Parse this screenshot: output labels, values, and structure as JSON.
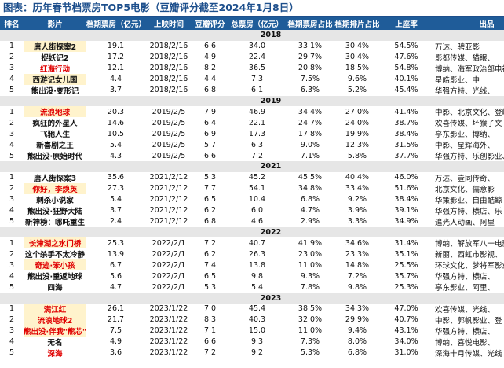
{
  "header": {
    "title": "图表：历年春节档票房TOP5电影（豆瓣评分截至2024年1月8日）"
  },
  "table": {
    "columns": [
      "排名",
      "影片",
      "档期票房（亿元）",
      "上映时间",
      "豆瓣评分",
      "总票房（亿元）",
      "档期票房占比",
      "档期排片占比",
      "上座率",
      "出品"
    ],
    "groups": [
      {
        "year": "2018",
        "rows": [
          [
            "1",
            "唐人街探案2",
            "19.1",
            "2018/2/16",
            "6.6",
            "34.0",
            "33.1%",
            "30.4%",
            "54.5%",
            "万达、骋亚影"
          ],
          [
            "2",
            "捉妖记2",
            "17.2",
            "2018/2/16",
            "4.9",
            "22.4",
            "29.7%",
            "30.4%",
            "47.6%",
            "影都传媒、猫眼、"
          ],
          [
            "3",
            "红海行动",
            "12.1",
            "2018/2/16",
            "8.2",
            "36.5",
            "20.8%",
            "18.5%",
            "54.8%",
            "博纳、海军政治部电视"
          ],
          [
            "4",
            "西游记女儿国",
            "4.4",
            "2018/2/16",
            "4.4",
            "7.3",
            "7.5%",
            "9.6%",
            "40.1%",
            "星皓影业、中"
          ],
          [
            "5",
            "熊出没·变形记",
            "3.7",
            "2018/2/16",
            "6.8",
            "6.1",
            "6.3%",
            "5.2%",
            "45.4%",
            "华强方特、光线、"
          ]
        ]
      },
      {
        "year": "2019",
        "rows": [
          [
            "1",
            "流浪地球",
            "20.3",
            "2019/2/5",
            "7.9",
            "46.9",
            "34.4%",
            "27.0%",
            "41.4%",
            "中影、北京文化、登峰"
          ],
          [
            "2",
            "疯狂的外星人",
            "14.6",
            "2019/2/5",
            "6.4",
            "22.1",
            "24.7%",
            "24.0%",
            "38.7%",
            "欢喜传媒、坏猴子文"
          ],
          [
            "3",
            "飞驰人生",
            "10.5",
            "2019/2/5",
            "6.9",
            "17.3",
            "17.8%",
            "19.9%",
            "38.4%",
            "亭东影业、博纳、"
          ],
          [
            "4",
            "新喜剧之王",
            "5.4",
            "2019/2/5",
            "5.7",
            "6.3",
            "9.0%",
            "12.3%",
            "31.5%",
            "中影、星辉海外、"
          ],
          [
            "5",
            "熊出没·原始时代",
            "4.3",
            "2019/2/5",
            "6.6",
            "7.2",
            "7.1%",
            "5.8%",
            "37.7%",
            "华强方特、乐创影业、"
          ]
        ]
      },
      {
        "year": "2021",
        "rows": [
          [
            "1",
            "唐人街探案3",
            "35.6",
            "2021/2/12",
            "5.3",
            "45.2",
            "45.5%",
            "40.4%",
            "46.0%",
            "万达、壹同传奇、"
          ],
          [
            "2",
            "你好，李焕英",
            "27.3",
            "2021/2/12",
            "7.7",
            "54.1",
            "34.8%",
            "33.4%",
            "51.6%",
            "北京文化、儒意影"
          ],
          [
            "3",
            "刺杀小说家",
            "5.4",
            "2021/2/12",
            "6.5",
            "10.4",
            "6.8%",
            "9.2%",
            "38.4%",
            "华策影业、自由酷鲸"
          ],
          [
            "4",
            "熊出没·狂野大陆",
            "3.7",
            "2021/2/12",
            "6.2",
            "6.0",
            "4.7%",
            "3.9%",
            "39.1%",
            "华强方特、横店、乐"
          ],
          [
            "5",
            "新神榜：哪吒重生",
            "2.4",
            "2021/2/12",
            "6.8",
            "4.6",
            "2.9%",
            "3.3%",
            "34.9%",
            "追光人动画、阿里"
          ]
        ]
      },
      {
        "year": "2022",
        "rows": [
          [
            "1",
            "长津湖之水门桥",
            "25.3",
            "2022/2/1",
            "7.2",
            "40.7",
            "41.9%",
            "34.6%",
            "31.4%",
            "博纳、解放军八一电影制"
          ],
          [
            "2",
            "这个杀手不太冷静",
            "13.9",
            "2022/2/1",
            "6.2",
            "26.3",
            "23.0%",
            "23.3%",
            "35.1%",
            "新丽、西虹市影视、"
          ],
          [
            "3",
            "奇迹·笨小孩",
            "6.7",
            "2022/2/1",
            "7.4",
            "13.8",
            "11.0%",
            "14.8%",
            "25.5%",
            "环球文化、梦将军影业"
          ],
          [
            "4",
            "熊出没·重返地球",
            "5.6",
            "2022/2/1",
            "6.5",
            "9.8",
            "9.3%",
            "7.2%",
            "35.7%",
            "华强方特、横店、"
          ],
          [
            "5",
            "四海",
            "4.7",
            "2022/2/1",
            "5.3",
            "5.4",
            "7.8%",
            "9.8%",
            "25.3%",
            "亭东影业、阿里、"
          ]
        ]
      },
      {
        "year": "2023",
        "rows": [
          [
            "1",
            "满江红",
            "26.1",
            "2023/1/22",
            "7.0",
            "45.4",
            "38.5%",
            "34.3%",
            "47.0%",
            "欢喜传媒、光线、"
          ],
          [
            "2",
            "流浪地球2",
            "21.7",
            "2023/1/22",
            "8.3",
            "40.3",
            "32.0%",
            "29.9%",
            "40.7%",
            "中影、郭帆影业、登"
          ],
          [
            "3",
            "熊出没·伴我\"熊芯\"",
            "7.5",
            "2023/1/22",
            "7.1",
            "15.0",
            "11.0%",
            "9.4%",
            "43.1%",
            "华强方特、横店、"
          ],
          [
            "4",
            "无名",
            "4.9",
            "2023/1/22",
            "6.6",
            "9.3",
            "7.3%",
            "8.0%",
            "34.0%",
            "博纳、喜悦电影、"
          ],
          [
            "5",
            "深海",
            "3.6",
            "2023/1/22",
            "7.2",
            "9.2",
            "5.3%",
            "6.8%",
            "31.0%",
            "深海十月传媒、光线"
          ]
        ]
      }
    ]
  }
}
